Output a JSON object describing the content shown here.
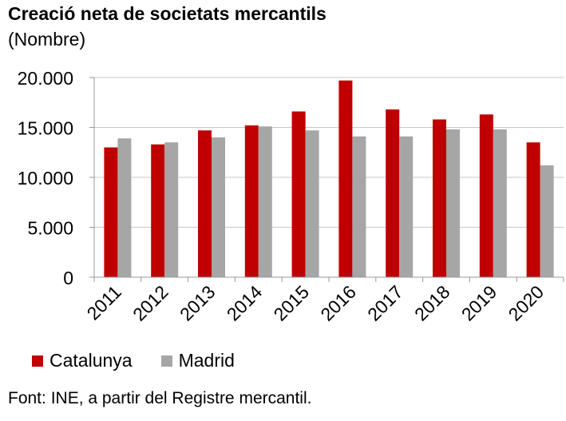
{
  "chart_data": {
    "type": "bar",
    "title": "Creació neta de societats mercantils",
    "subtitle": "(Nombre)",
    "categories": [
      "2011",
      "2012",
      "2013",
      "2014",
      "2015",
      "2016",
      "2017",
      "2018",
      "2019",
      "2020"
    ],
    "series": [
      {
        "name": "Catalunya",
        "color": "#c00000",
        "values": [
          13000,
          13300,
          14700,
          15200,
          16600,
          19700,
          16800,
          15800,
          16300,
          13500
        ]
      },
      {
        "name": "Madrid",
        "color": "#a6a6a6",
        "values": [
          13900,
          13500,
          14000,
          15100,
          14700,
          14100,
          14100,
          14800,
          14800,
          11200
        ]
      }
    ],
    "yticks": [
      "0",
      "5.000",
      "10.000",
      "15.000",
      "20.000"
    ],
    "ytick_values": [
      0,
      5000,
      10000,
      15000,
      20000
    ],
    "ylim": [
      0,
      20000
    ],
    "grid": true,
    "legend_position": "bottom-left",
    "source": "Font: INE, a partir del Registre mercantil."
  }
}
